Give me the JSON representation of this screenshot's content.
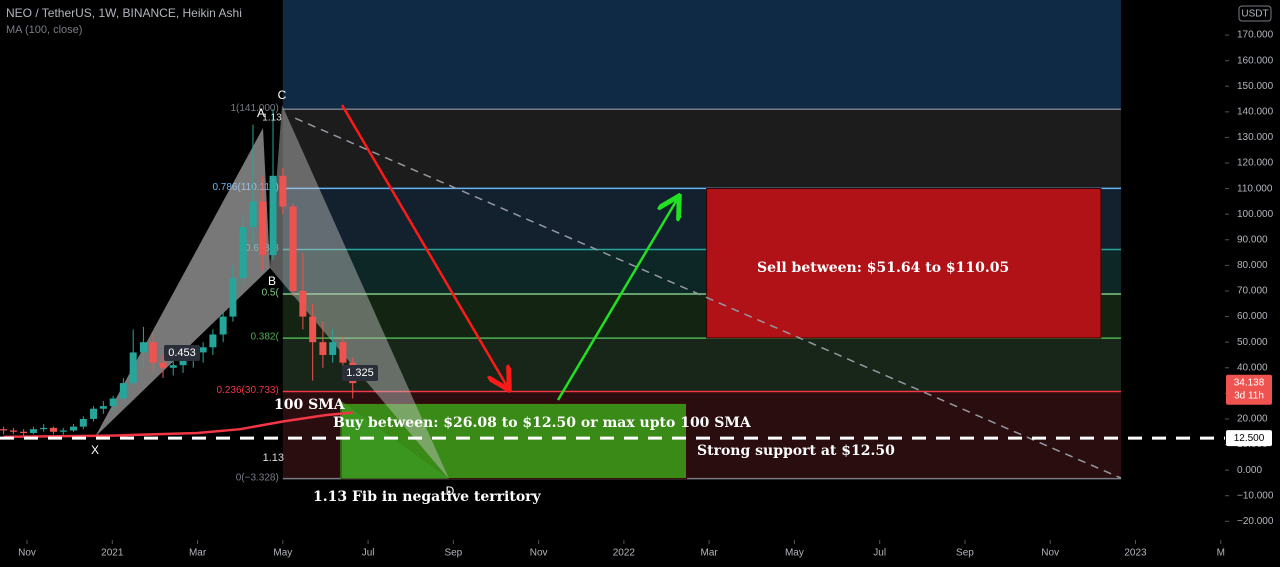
{
  "chart_data": {
    "type": "candlestick",
    "title": "NEO / TetherUS, 1W, BINANCE, Heikin Ashi",
    "indicator": "MA (100, close)",
    "currency": "USDT",
    "xlim": [
      -0.634,
      28.1
    ],
    "ylim": [
      -27.3,
      183.7
    ],
    "xticks": [
      {
        "value": 0,
        "label": "Nov"
      },
      {
        "value": 2,
        "label": "2021"
      },
      {
        "value": 4,
        "label": "Mar"
      },
      {
        "value": 6,
        "label": "May"
      },
      {
        "value": 8,
        "label": "Jul"
      },
      {
        "value": 10,
        "label": "Sep"
      },
      {
        "value": 12,
        "label": "Nov"
      },
      {
        "value": 14,
        "label": "2022"
      },
      {
        "value": 16,
        "label": "Mar"
      },
      {
        "value": 18,
        "label": "May"
      },
      {
        "value": 20,
        "label": "Jul"
      },
      {
        "value": 22,
        "label": "Sep"
      },
      {
        "value": 24,
        "label": "Nov"
      },
      {
        "value": 26,
        "label": "2023"
      },
      {
        "value": 28,
        "label": "M"
      }
    ],
    "yticks": [
      {
        "value": -20,
        "label": "−20.000"
      },
      {
        "value": -10,
        "label": "−10.000"
      },
      {
        "value": 0,
        "label": "0.000"
      },
      {
        "value": 10,
        "label": "10.000"
      },
      {
        "value": 20,
        "label": "20.000"
      },
      {
        "value": 30,
        "label": "30.000"
      },
      {
        "value": 40,
        "label": "40.000"
      },
      {
        "value": 50,
        "label": "50.000"
      },
      {
        "value": 60,
        "label": "60.000"
      },
      {
        "value": 70,
        "label": "70.000"
      },
      {
        "value": 80,
        "label": "80.000"
      },
      {
        "value": 90,
        "label": "90.000"
      },
      {
        "value": 100,
        "label": "100.000"
      },
      {
        "value": 110,
        "label": "110.000"
      },
      {
        "value": 120,
        "label": "120.000"
      },
      {
        "value": 130,
        "label": "130.000"
      },
      {
        "value": 140,
        "label": "140.000"
      },
      {
        "value": 150,
        "label": "150.000"
      },
      {
        "value": 160,
        "label": "160.000"
      },
      {
        "value": 170,
        "label": "170.000"
      }
    ],
    "up_color": "#26a69a",
    "down_color": "#ef5350",
    "candles": {
      "x": [
        -0.55,
        -0.32,
        -0.08,
        0.15,
        0.39,
        0.62,
        0.85,
        1.09,
        1.32,
        1.56,
        1.79,
        2.02,
        2.26,
        2.49,
        2.73,
        2.96,
        3.19,
        3.43,
        3.66,
        3.9,
        4.13,
        4.36,
        4.6,
        4.83,
        5.07,
        5.3,
        5.53,
        5.77,
        6.0,
        6.24,
        6.47,
        6.7,
        6.94,
        7.17,
        7.41,
        7.64
      ],
      "open": [
        16,
        15.5,
        15,
        14.5,
        16,
        16.5,
        15,
        15.5,
        17,
        20,
        24,
        25,
        28,
        34,
        46,
        50,
        42,
        40,
        41,
        44,
        46,
        48,
        53,
        60,
        75,
        95,
        105,
        84,
        115,
        103,
        70,
        60,
        50,
        45,
        50,
        42
      ],
      "high": [
        17,
        16.5,
        16,
        17,
        18,
        17,
        16.5,
        18,
        21,
        25,
        27,
        29,
        36,
        55,
        56,
        54,
        45,
        44,
        46,
        48,
        50,
        55,
        62,
        80,
        100,
        135,
        115,
        141,
        118,
        104,
        85,
        65,
        58,
        55,
        52,
        44
      ],
      "low": [
        14,
        14,
        13.5,
        14,
        15,
        14,
        13,
        15,
        16,
        19,
        22,
        23,
        27,
        32,
        40,
        38,
        36,
        37,
        38,
        40,
        42,
        45,
        50,
        58,
        72,
        88,
        78,
        82,
        100,
        68,
        55,
        35,
        40,
        42,
        38,
        28
      ],
      "close": [
        15.5,
        15,
        14.5,
        16,
        16.5,
        15,
        15.5,
        17,
        20,
        24,
        25,
        28,
        34,
        46,
        50,
        42,
        40,
        41,
        44,
        46,
        48,
        53,
        60,
        75,
        95,
        105,
        84,
        115,
        103,
        70,
        60,
        50,
        45,
        50,
        42,
        34
      ]
    },
    "ma": {
      "name": "100 SMA",
      "color": "#f23645",
      "x": [
        -0.55,
        2,
        4,
        5,
        6,
        7,
        7.64
      ],
      "values": [
        13,
        13.5,
        14.5,
        16,
        19,
        21.5,
        22.5
      ]
    },
    "fib": {
      "x": [
        6.0,
        25.66
      ],
      "top_fill": "#0f2a45",
      "levels": [
        {
          "label": "1(141.000)",
          "value": 141,
          "color": "#787b86",
          "fill": "#1c1c1c"
        },
        {
          "label": "0.786(110.114)",
          "value": 110.114,
          "color": "#64b5f6",
          "fill": "#13212e"
        },
        {
          "label": "0.618(8",
          "value": 86.2,
          "color": "#26a69a",
          "fill": "#0d2626"
        },
        {
          "label": "0.5(",
          "value": 68.8,
          "color": "#81c784",
          "fill": "#132512"
        },
        {
          "label": "0.382(",
          "value": 51.6,
          "color": "#4caf50",
          "fill": "#172619"
        },
        {
          "label": "0.236(30.733)",
          "value": 30.733,
          "color": "#f23645",
          "fill": "#2a0d0f"
        },
        {
          "label": "0(−3.328)",
          "value": -3.328,
          "color": "#787b86"
        }
      ]
    },
    "zones": [
      {
        "label": "Sell between: $51.64 to $110.05",
        "low": 51.64,
        "high": 110.05,
        "x": [
          15.94,
          25.19
        ],
        "color": "#b01217"
      },
      {
        "label": "Buy between: $26.08 to $12.50 or max upto 100 SMA",
        "low": -3.328,
        "high": 26.08,
        "x": [
          7.37,
          15.47
        ],
        "color": "#3a8a17"
      }
    ],
    "trendline": {
      "x": [
        6.29,
        25.66
      ],
      "values": [
        137.5,
        -3.1
      ]
    },
    "support": {
      "value": 12.5,
      "label": "12.500",
      "text": "Strong support at $12.50"
    },
    "last_price": {
      "value": 34.138,
      "countdown": "3d 11h"
    },
    "pattern_labels": [
      "X",
      "A",
      "B",
      "C",
      "D"
    ],
    "ratio_labels": [
      "0.453",
      "1.325",
      "1.13",
      "1.13"
    ],
    "notes": [
      "100 SMA",
      "1.13 Fib in negative territory"
    ]
  }
}
